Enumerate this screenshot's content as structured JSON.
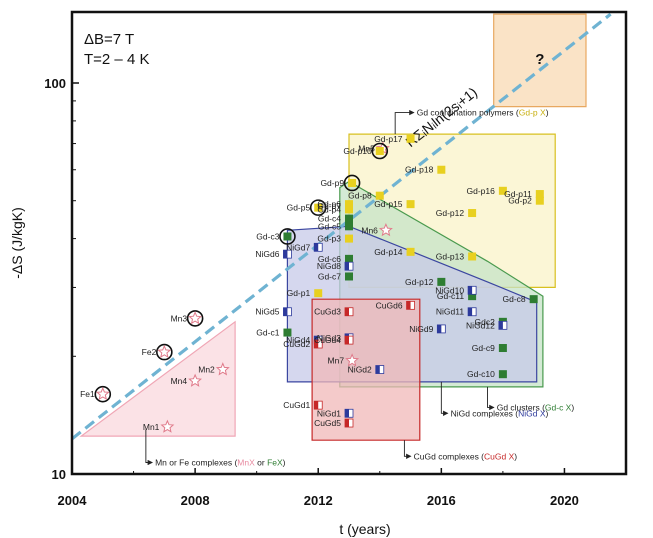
{
  "chart_data": {
    "type": "scatter",
    "xlabel": "t (years)",
    "ylabel": "-ΔS (J/kgK)",
    "xlim": [
      2004,
      2022
    ],
    "ylim": [
      10,
      150
    ],
    "y_scale": "log",
    "x_ticks": [
      "2004",
      "2008",
      "2012",
      "2016",
      "2020"
    ],
    "y_ticks": [
      "10",
      "100"
    ],
    "conditions": [
      "ΔB=7 T",
      "T=2 – 4 K"
    ],
    "trend_label": "RΣᵢNᵢln(2sᵢ+1)",
    "trend_line": [
      [
        2004,
        12.3
      ],
      [
        2021.5,
        150
      ]
    ],
    "question_mark": "?",
    "colors": {
      "Mn/Fe": "#f5b8c4",
      "Gd-c": "#2e7d32",
      "Gd-p": "#e8d020",
      "NiGd": "#2d3a9c",
      "CuGd": "#c62828",
      "trend": "#6fb3d2",
      "star": "#e07a8a"
    },
    "regions": [
      {
        "key": "mnfe",
        "fill": "#f9d8de",
        "stroke": "#f0a6b5",
        "poly": [
          [
            2004.3,
            12.5
          ],
          [
            2009.3,
            12.5
          ],
          [
            2009.3,
            24.5
          ],
          [
            2004.3,
            12.5
          ]
        ]
      },
      {
        "key": "future",
        "fill": "#f8d9b3",
        "stroke": "#e8a860",
        "poly": [
          [
            2017.7,
            87
          ],
          [
            2020.7,
            87
          ],
          [
            2020.7,
            150
          ],
          [
            2017.7,
            150
          ]
        ]
      },
      {
        "key": "gdp",
        "fill": "#faf3c8",
        "stroke": "#d8c020",
        "poly": [
          [
            2013,
            30
          ],
          [
            2019.7,
            30
          ],
          [
            2019.7,
            74
          ],
          [
            2013,
            74
          ]
        ]
      },
      {
        "key": "gdc",
        "fill": "#c6e3c7",
        "stroke": "#4a9a4e",
        "poly": [
          [
            2012.7,
            16.7
          ],
          [
            2019.3,
            16.7
          ],
          [
            2019.3,
            28.5
          ],
          [
            2017.5,
            35
          ],
          [
            2013,
            56
          ],
          [
            2012.7,
            54
          ]
        ]
      },
      {
        "key": "nigd",
        "fill": "#c7c9e8",
        "stroke": "#3b46a0",
        "poly": [
          [
            2011,
            17.2
          ],
          [
            2019.1,
            17.2
          ],
          [
            2019.1,
            27.5
          ],
          [
            2017.5,
            31
          ],
          [
            2013,
            43
          ],
          [
            2011,
            42
          ]
        ]
      },
      {
        "key": "cugd",
        "fill": "#f0b8b8",
        "stroke": "#c62828",
        "poly": [
          [
            2011.8,
            12.2
          ],
          [
            2015.3,
            12.2
          ],
          [
            2015.3,
            28
          ],
          [
            2011.8,
            28
          ]
        ]
      }
    ],
    "series": [
      {
        "name": "Mn",
        "marker": "star",
        "points": [
          {
            "label": "Mn1",
            "x": 2007.1,
            "y": 13.2
          },
          {
            "label": "Mn2",
            "x": 2008.9,
            "y": 18.5
          },
          {
            "label": "Mn3",
            "x": 2008.0,
            "y": 25,
            "circled": true
          },
          {
            "label": "Mn4",
            "x": 2008.0,
            "y": 17.3
          },
          {
            "label": "Mn5",
            "x": 2014.1,
            "y": 68
          },
          {
            "label": "Mn6",
            "x": 2014.2,
            "y": 42
          },
          {
            "label": "Mn7",
            "x": 2013.1,
            "y": 19.5
          }
        ]
      },
      {
        "name": "Fe",
        "marker": "star",
        "points": [
          {
            "label": "Fe1",
            "x": 2005.0,
            "y": 16,
            "circled": true
          },
          {
            "label": "Fe2",
            "x": 2007.0,
            "y": 20.5,
            "circled": true
          }
        ]
      },
      {
        "name": "Gd-c",
        "marker": "square",
        "points": [
          {
            "label": "Gd-c1",
            "x": 2011.0,
            "y": 23
          },
          {
            "label": "Gd-c3",
            "x": 2011.0,
            "y": 40.5,
            "circled": true
          },
          {
            "label": "Gd-c4",
            "x": 2013.0,
            "y": 45
          },
          {
            "label": "Gd-c5",
            "x": 2013.0,
            "y": 43
          },
          {
            "label": "Gd-c6",
            "x": 2013.0,
            "y": 35.5
          },
          {
            "label": "Gd-c7",
            "x": 2013.0,
            "y": 32
          },
          {
            "label": "Gd-c8",
            "x": 2019.0,
            "y": 28
          },
          {
            "label": "Gd-c9",
            "x": 2018.0,
            "y": 21
          },
          {
            "label": "Gd-c10",
            "x": 2018.0,
            "y": 18
          },
          {
            "label": "Gd-c11",
            "x": 2017.0,
            "y": 28.5
          },
          {
            "label": "Gdc2",
            "x": 2018.0,
            "y": 24.5
          },
          {
            "label": "Gd-p12",
            "x": 2016.0,
            "y": 31
          }
        ]
      },
      {
        "name": "Gd-p",
        "marker": "square",
        "points": [
          {
            "label": "Gd-p1",
            "x": 2012.0,
            "y": 29
          },
          {
            "label": "Gd-p2",
            "x": 2019.2,
            "y": 50
          },
          {
            "label": "Gd-p3",
            "x": 2013.0,
            "y": 40
          },
          {
            "label": "Gd-p4",
            "x": 2013.0,
            "y": 47.5
          },
          {
            "label": "Gd-p5",
            "x": 2012.0,
            "y": 48,
            "circled": true
          },
          {
            "label": "Gd-p6",
            "x": 2013.0,
            "y": 49
          },
          {
            "label": "Gd-p7",
            "x": 2013.0,
            "y": 48.5
          },
          {
            "label": "Gd-p8",
            "x": 2014.0,
            "y": 51.5
          },
          {
            "label": "Gd-p9",
            "x": 2013.1,
            "y": 55.5,
            "circled": true
          },
          {
            "label": "Gd-p10",
            "x": 2014.0,
            "y": 67,
            "circled": true
          },
          {
            "label": "Gd-p11",
            "x": 2019.2,
            "y": 52
          },
          {
            "label": "Gd-p12",
            "x": 2017.0,
            "y": 46.5
          },
          {
            "label": "Gd-p13",
            "x": 2017.0,
            "y": 36
          },
          {
            "label": "Gd-p14",
            "x": 2015.0,
            "y": 37
          },
          {
            "label": "Gd-p15",
            "x": 2015.0,
            "y": 49
          },
          {
            "label": "Gd-p16",
            "x": 2018.0,
            "y": 53
          },
          {
            "label": "Gd-p17",
            "x": 2015.0,
            "y": 72
          },
          {
            "label": "Gd-p18",
            "x": 2016.0,
            "y": 60
          }
        ]
      },
      {
        "name": "NiGd",
        "marker": "half",
        "points": [
          {
            "label": "NiGd1",
            "x": 2013.0,
            "y": 14.3
          },
          {
            "label": "NiGd2",
            "x": 2014.0,
            "y": 18.5
          },
          {
            "label": "NiGd3",
            "x": 2013.0,
            "y": 22.3
          },
          {
            "label": "NiGd4",
            "x": 2012.0,
            "y": 22
          },
          {
            "label": "NiGd5",
            "x": 2011.0,
            "y": 26
          },
          {
            "label": "NiGd6",
            "x": 2011.0,
            "y": 36.5
          },
          {
            "label": "NiGd7",
            "x": 2012.0,
            "y": 38
          },
          {
            "label": "NiGd8",
            "x": 2013.0,
            "y": 34
          },
          {
            "label": "NiGd9",
            "x": 2016.0,
            "y": 23.5
          },
          {
            "label": "NiGd10",
            "x": 2017.0,
            "y": 29.5
          },
          {
            "label": "NiGd11",
            "x": 2017.0,
            "y": 26
          },
          {
            "label": "NiGd12",
            "x": 2018.0,
            "y": 24
          }
        ]
      },
      {
        "name": "CuGd",
        "marker": "half",
        "points": [
          {
            "label": "CuGd1",
            "x": 2012.0,
            "y": 15
          },
          {
            "label": "CuGd2",
            "x": 2012.0,
            "y": 21.5
          },
          {
            "label": "CuGd3",
            "x": 2013.0,
            "y": 26
          },
          {
            "label": "CuGd4",
            "x": 2013.0,
            "y": 22
          },
          {
            "label": "CuGd5",
            "x": 2013.0,
            "y": 13.5
          },
          {
            "label": "CuGd6",
            "x": 2015.0,
            "y": 27
          }
        ]
      }
    ],
    "annotations": [
      {
        "text": "Mn or Fe complexes (",
        "parts": [
          [
            "Mn or Fe complexes (",
            "#222"
          ],
          [
            "MnX",
            "#e88aa0"
          ],
          [
            " or ",
            "#222"
          ],
          [
            "FeX",
            "#2e7d32"
          ],
          [
            ")",
            "#222"
          ]
        ],
        "arrow_from": [
          2006.4,
          13
        ],
        "arrow_to": [
          2006.4,
          10.7
        ],
        "text_at": [
          2006.7,
          10.7
        ]
      },
      {
        "text": "Gd coordination polymers (Gd-p X)",
        "parts": [
          [
            "Gd coordination polymers (",
            "#222"
          ],
          [
            "Gd-p X",
            "#c8b010"
          ],
          [
            ")",
            "#222"
          ]
        ],
        "arrow_from": [
          2014.5,
          74
        ],
        "arrow_to": [
          2014.5,
          84
        ],
        "text_at": [
          2015.2,
          84
        ]
      },
      {
        "text": "Gd clusters (Gd-c X)",
        "parts": [
          [
            "Gd clusters (",
            "#222"
          ],
          [
            "Gd-c X",
            "#2e7d32"
          ],
          [
            ")",
            "#222"
          ]
        ],
        "arrow_from": [
          2017.5,
          16.7
        ],
        "arrow_to": [
          2017.5,
          14.8
        ],
        "text_at": [
          2017.8,
          14.8
        ]
      },
      {
        "text": "NiGd complexes (NiGd X)",
        "parts": [
          [
            "NiGd complexes (",
            "#222"
          ],
          [
            "NiGd X",
            "#2d3a9c"
          ],
          [
            ")",
            "#222"
          ]
        ],
        "arrow_from": [
          2016.0,
          17.2
        ],
        "arrow_to": [
          2016.0,
          14.3
        ],
        "text_at": [
          2016.3,
          14.3
        ]
      },
      {
        "text": "CuGd complexes (CuGd X)",
        "parts": [
          [
            "CuGd complexes (",
            "#222"
          ],
          [
            "CuGd X",
            "#c62828"
          ],
          [
            ")",
            "#222"
          ]
        ],
        "arrow_from": [
          2014.8,
          12.2
        ],
        "arrow_to": [
          2014.8,
          11.1
        ],
        "text_at": [
          2015.1,
          11.1
        ]
      }
    ]
  }
}
